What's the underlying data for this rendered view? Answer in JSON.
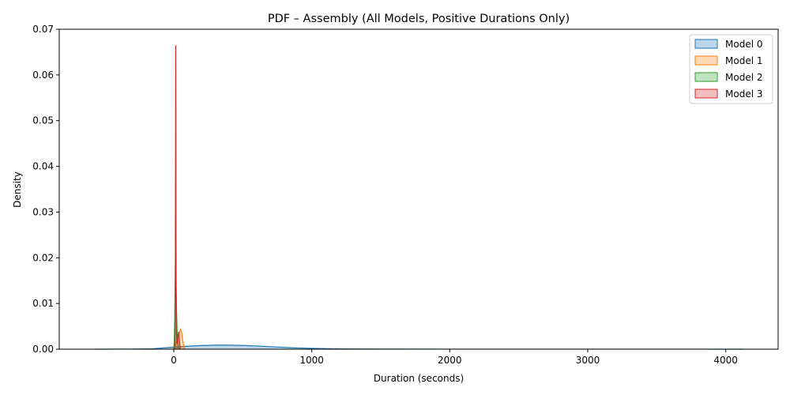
{
  "chart_data": {
    "type": "area",
    "title": "PDF – Assembly (All Models, Positive Durations Only)",
    "xlabel": "Duration (seconds)",
    "ylabel": "Density",
    "xlim": [
      -830,
      4380
    ],
    "ylim": [
      0,
      0.07
    ],
    "xticks": [
      {
        "value": 0,
        "label": "0"
      },
      {
        "value": 1000,
        "label": "1000"
      },
      {
        "value": 2000,
        "label": "2000"
      },
      {
        "value": 3000,
        "label": "3000"
      },
      {
        "value": 4000,
        "label": "4000"
      }
    ],
    "yticks": [
      {
        "value": 0,
        "label": "0.00"
      },
      {
        "value": 0.01,
        "label": "0.01"
      },
      {
        "value": 0.02,
        "label": "0.02"
      },
      {
        "value": 0.03,
        "label": "0.03"
      },
      {
        "value": 0.04,
        "label": "0.04"
      },
      {
        "value": 0.05,
        "label": "0.05"
      },
      {
        "value": 0.06,
        "label": "0.06"
      },
      {
        "value": 0.07,
        "label": "0.07"
      }
    ],
    "grid": false,
    "legend_position": "top-right",
    "series": [
      {
        "name": "Model 0",
        "color": "#1f77b4",
        "x": [
          -570,
          -300,
          -150,
          0,
          100,
          200,
          300,
          400,
          500,
          600,
          700,
          800,
          900,
          1000,
          1200,
          1500,
          2000,
          2500,
          3000,
          3500,
          4000,
          4130
        ],
        "y": [
          0.0,
          3e-05,
          0.0001,
          0.00045,
          0.00065,
          0.0008,
          0.00088,
          0.00088,
          0.00082,
          0.0007,
          0.00055,
          0.0004,
          0.00027,
          0.00017,
          8e-05,
          3e-05,
          1e-05,
          1e-05,
          1e-05,
          1e-05,
          5e-06,
          0.0
        ]
      },
      {
        "name": "Model 1",
        "color": "#ff7f0e",
        "x": [
          0,
          5,
          10,
          15,
          20,
          25,
          30,
          35,
          40,
          45,
          50,
          55,
          60,
          65,
          70,
          75,
          80,
          85
        ],
        "y": [
          0.0,
          0.0003,
          0.0008,
          0.0013,
          0.0018,
          0.0024,
          0.003,
          0.0033,
          0.0036,
          0.004,
          0.0043,
          0.004,
          0.0031,
          0.002,
          0.0011,
          0.0004,
          0.0001,
          0.0
        ]
      },
      {
        "name": "Model 2",
        "color": "#2ca02c",
        "x": [
          0,
          4,
          7,
          10,
          13,
          16,
          20,
          24,
          28,
          32,
          36,
          40,
          45
        ],
        "y": [
          0.0,
          0.002,
          0.006,
          0.014,
          0.02,
          0.016,
          0.009,
          0.004,
          0.002,
          0.0008,
          0.0003,
          0.0001,
          0.0
        ]
      },
      {
        "name": "Model 3",
        "color": "#d62728",
        "x": [
          6,
          9,
          11,
          13,
          14,
          15,
          16,
          18,
          20,
          24,
          28,
          32,
          36,
          40,
          44,
          48
        ],
        "y": [
          0.0,
          0.003,
          0.015,
          0.045,
          0.0665,
          0.05,
          0.025,
          0.008,
          0.003,
          0.0012,
          0.0015,
          0.0032,
          0.0038,
          0.0025,
          0.0008,
          0.0
        ]
      }
    ]
  }
}
